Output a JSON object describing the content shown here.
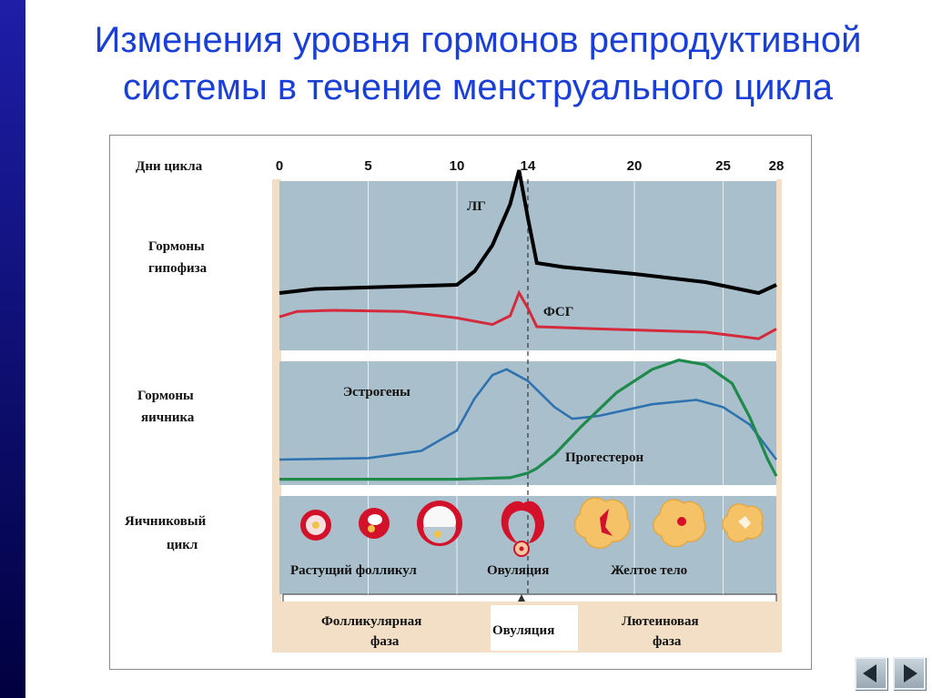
{
  "title": {
    "line1": "Изменения уровня гормонов репродуктивной",
    "line2": "системы в течение менструального цикла"
  },
  "diagram": {
    "days_label": "Дни цикла",
    "days": [
      0,
      5,
      10,
      14,
      20,
      25,
      28
    ],
    "ovulation_day": 14,
    "rows": {
      "pituitary": {
        "label_line1": "Гормоны",
        "label_line2": "гипофиза"
      },
      "ovarian": {
        "label_line1": "Гормоны",
        "label_line2": "яичника"
      },
      "cycle": {
        "label_line1": "Яичниковый",
        "label_line2": "цикл"
      }
    },
    "curve_labels": {
      "lh": "ЛГ",
      "fsh": "ФСГ",
      "estrogen": "Эстрогены",
      "progesterone": "Прогестерон"
    },
    "stage_labels": {
      "growing": "Растущий фолликул",
      "ovulation": "Овуляция",
      "corpus": "Желтое тело"
    },
    "phases": {
      "follicular_line1": "Фолликулярная",
      "follicular_line2": "фаза",
      "ovulation": "Овуляция",
      "luteal_line1": "Лютеиновая",
      "luteal_line2": "фаза"
    },
    "colors": {
      "lh": "#000000",
      "fsh": "#d42a3c",
      "estrogen": "#2f72b0",
      "progesterone": "#1f8a4c",
      "panel": "#a9c0cc",
      "side": "#f3dfc6",
      "follicle": "#d3112a",
      "corpus": "#f5c268"
    },
    "series": {
      "lh": [
        [
          0,
          1.0
        ],
        [
          2,
          1.3
        ],
        [
          10,
          1.6
        ],
        [
          11,
          2.6
        ],
        [
          12,
          4.5
        ],
        [
          13,
          7.5
        ],
        [
          13.5,
          10
        ],
        [
          14,
          6.5
        ],
        [
          14.5,
          3.2
        ],
        [
          16,
          2.9
        ],
        [
          20,
          2.4
        ],
        [
          24,
          1.8
        ],
        [
          27,
          1.0
        ],
        [
          28,
          1.6
        ]
      ],
      "fsh": [
        [
          0,
          0.4
        ],
        [
          1,
          0.9
        ],
        [
          3,
          1.0
        ],
        [
          7,
          0.9
        ],
        [
          10,
          0.3
        ],
        [
          12,
          -0.3
        ],
        [
          13,
          0.5
        ],
        [
          13.5,
          2.6
        ],
        [
          14,
          1.2
        ],
        [
          14.5,
          -0.5
        ],
        [
          18,
          -0.7
        ],
        [
          24,
          -1.0
        ],
        [
          27,
          -1.6
        ],
        [
          28,
          -0.7
        ]
      ],
      "estrogen": [
        [
          0,
          2.0
        ],
        [
          5,
          2.1
        ],
        [
          8,
          2.6
        ],
        [
          10,
          4.0
        ],
        [
          11,
          6.2
        ],
        [
          12,
          7.8
        ],
        [
          12.8,
          8.2
        ],
        [
          14,
          7.4
        ],
        [
          15.5,
          5.6
        ],
        [
          16.5,
          4.8
        ],
        [
          18,
          5.0
        ],
        [
          21,
          5.8
        ],
        [
          23.5,
          6.1
        ],
        [
          25,
          5.6
        ],
        [
          26.5,
          4.4
        ],
        [
          28,
          2.0
        ]
      ],
      "progesterone": [
        [
          0,
          0.2
        ],
        [
          10,
          0.2
        ],
        [
          13,
          0.3
        ],
        [
          14,
          0.6
        ],
        [
          14.5,
          0.9
        ],
        [
          15.5,
          1.8
        ],
        [
          17,
          3.6
        ],
        [
          19,
          5.8
        ],
        [
          21,
          7.3
        ],
        [
          22.5,
          7.9
        ],
        [
          24,
          7.6
        ],
        [
          25.5,
          6.4
        ],
        [
          26.5,
          4.2
        ],
        [
          27.5,
          1.5
        ],
        [
          28,
          0.4
        ]
      ]
    }
  },
  "nav": {
    "prev_icon": "triangle-left-icon",
    "next_icon": "triangle-right-icon"
  }
}
